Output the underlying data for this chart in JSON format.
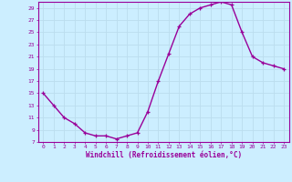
{
  "x": [
    0,
    1,
    2,
    3,
    4,
    5,
    6,
    7,
    8,
    9,
    10,
    11,
    12,
    13,
    14,
    15,
    16,
    17,
    18,
    19,
    20,
    21,
    22,
    23
  ],
  "y": [
    15,
    13,
    11,
    10,
    8.5,
    8,
    8,
    7.5,
    8,
    8.5,
    12,
    17,
    21.5,
    26,
    28,
    29,
    29.5,
    30,
    29.5,
    25,
    21,
    20,
    19.5,
    19
  ],
  "xlim": [
    -0.5,
    23.5
  ],
  "ylim": [
    7,
    30
  ],
  "yticks": [
    7,
    9,
    11,
    13,
    15,
    17,
    19,
    21,
    23,
    25,
    27,
    29
  ],
  "xticks": [
    0,
    1,
    2,
    3,
    4,
    5,
    6,
    7,
    8,
    9,
    10,
    11,
    12,
    13,
    14,
    15,
    16,
    17,
    18,
    19,
    20,
    21,
    22,
    23
  ],
  "xlabel": "Windchill (Refroidissement éolien,°C)",
  "line_color": "#990099",
  "marker": "+",
  "bg_color": "#cceeff",
  "grid_color": "#bbddee",
  "tick_label_color": "#990099",
  "label_color": "#990099",
  "spine_color": "#990099"
}
